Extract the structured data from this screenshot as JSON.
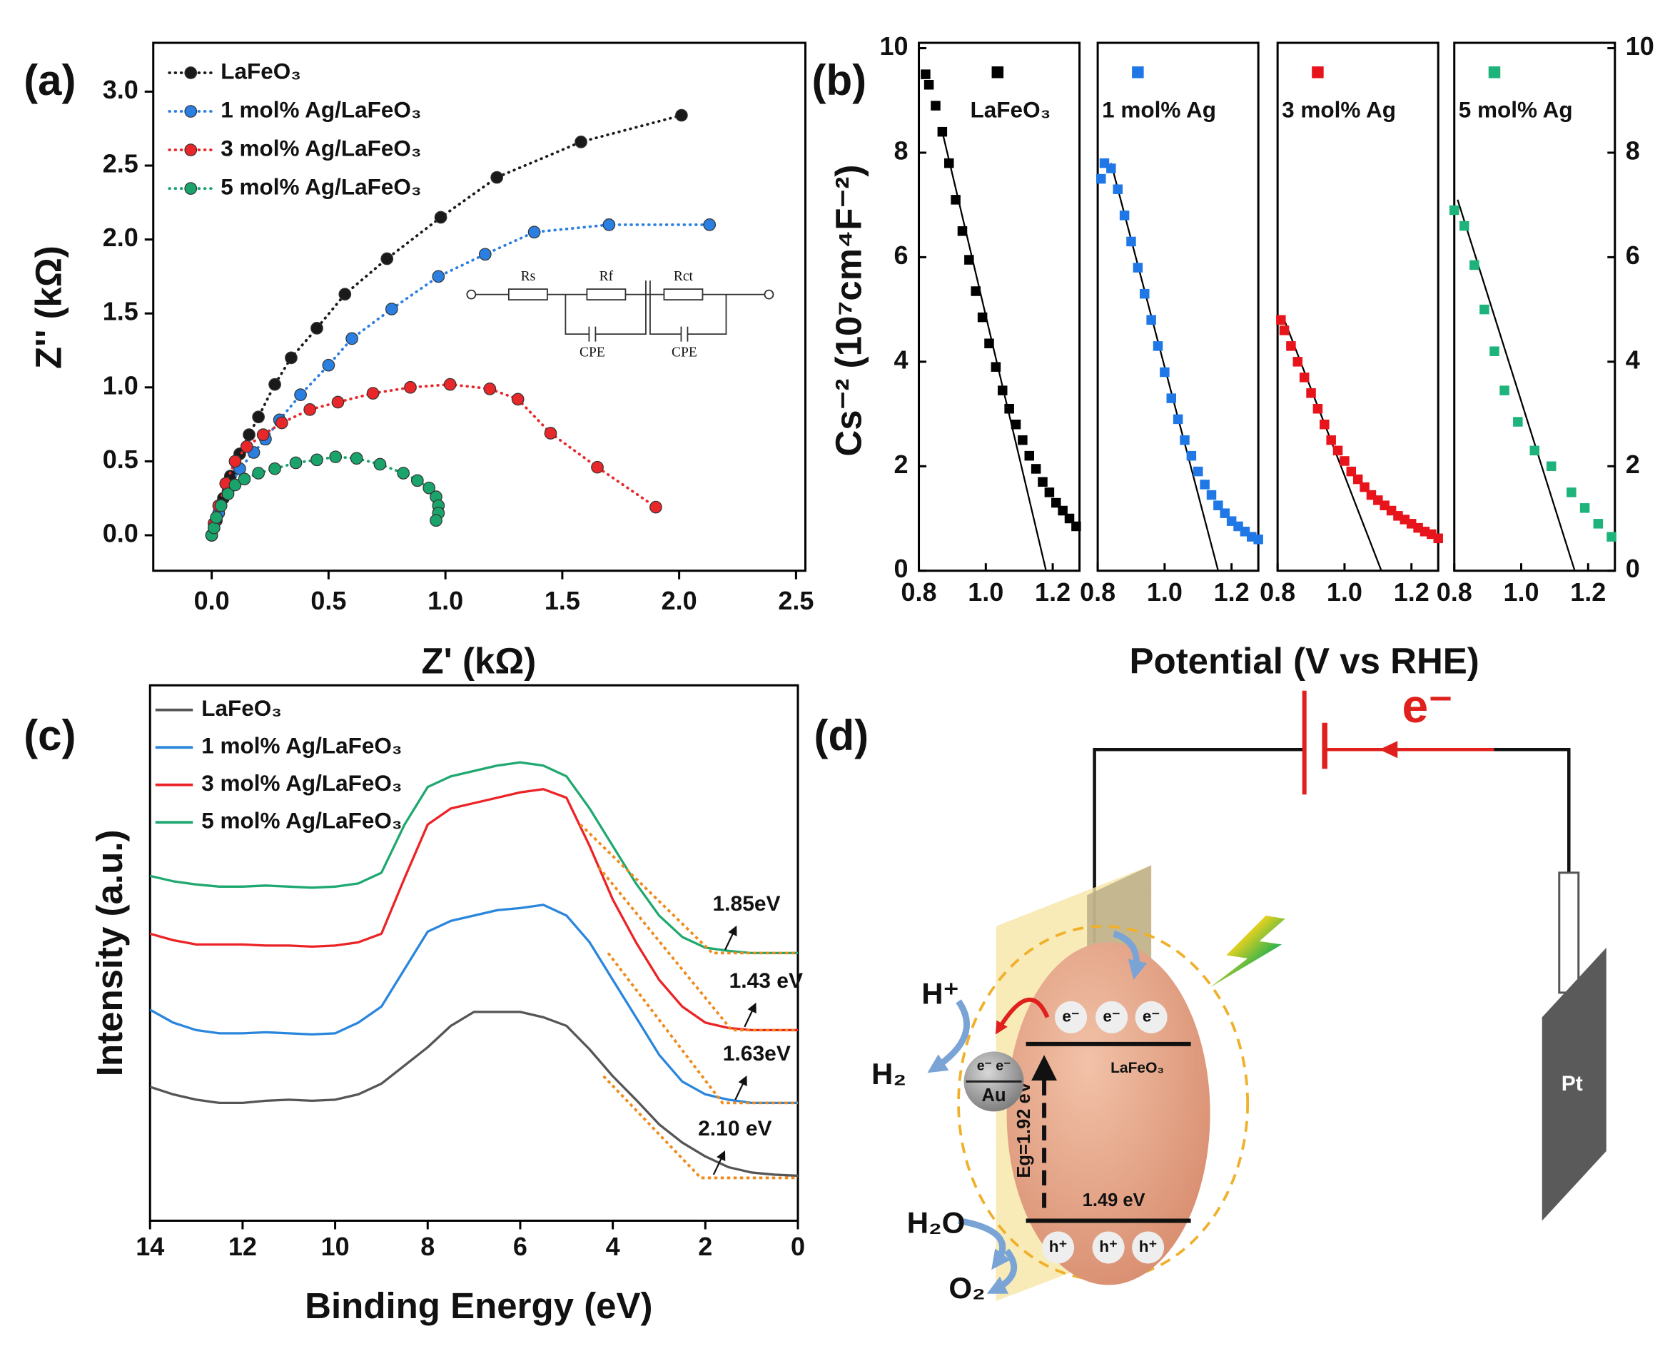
{
  "chart_data": [
    {
      "type": "scatter-line",
      "panel_label": "(a)",
      "xlabel": "Z' (kΩ)",
      "ylabel": "Z'' (kΩ)",
      "xlim": [
        -0.25,
        2.54
      ],
      "ylim": [
        -0.24,
        3.33
      ],
      "xticks": [
        {
          "value": 0,
          "label": "0.0"
        },
        0.5,
        {
          "value": 1,
          "label": "1.0"
        },
        1.5,
        {
          "value": 2,
          "label": "2.0"
        },
        2.5
      ],
      "yticks": [
        {
          "value": 0,
          "label": "0.0"
        },
        0.5,
        {
          "value": 1,
          "label": "1.0"
        },
        1.5,
        {
          "value": 2,
          "label": "2.0"
        },
        2.5,
        {
          "value": 3,
          "label": "3.0"
        }
      ],
      "inset": [
        "Rs",
        "Rf",
        "Rct",
        "CPE",
        "CPE"
      ],
      "series": [
        {
          "name": "LaFeO₃",
          "color": "#1a1a1a",
          "x": [
            0,
            0.02,
            0.05,
            0.08,
            0.12,
            0.16,
            0.2,
            0.27,
            0.34,
            0.45,
            0.57,
            0.75,
            0.98,
            1.22,
            1.58,
            2.01
          ],
          "values": [
            0,
            0.1,
            0.25,
            0.4,
            0.55,
            0.68,
            0.8,
            1.02,
            1.2,
            1.4,
            1.63,
            1.87,
            2.15,
            2.42,
            2.66,
            2.84
          ]
        },
        {
          "name": "1 mol% Ag/LaFeO₃",
          "color": "#2a7fe0",
          "x": [
            0,
            0.03,
            0.07,
            0.12,
            0.18,
            0.23,
            0.29,
            0.38,
            0.5,
            0.6,
            0.77,
            0.97,
            1.17,
            1.38,
            1.7,
            2.13
          ],
          "values": [
            0,
            0.15,
            0.3,
            0.45,
            0.56,
            0.65,
            0.78,
            0.95,
            1.15,
            1.33,
            1.53,
            1.75,
            1.9,
            2.05,
            2.1,
            2.1
          ]
        },
        {
          "name": "3 mol% Ag/LaFeO₃",
          "color": "#e8272a",
          "x": [
            0,
            0.01,
            0.03,
            0.06,
            0.1,
            0.15,
            0.22,
            0.3,
            0.42,
            0.54,
            0.69,
            0.85,
            1.02,
            1.19,
            1.31,
            1.45,
            1.65,
            1.9
          ],
          "values": [
            0,
            0.08,
            0.2,
            0.35,
            0.5,
            0.6,
            0.68,
            0.76,
            0.85,
            0.9,
            0.96,
            1.0,
            1.02,
            0.99,
            0.92,
            0.69,
            0.46,
            0.19
          ]
        },
        {
          "name": "5 mol% Ag/LaFeO₃",
          "color": "#1aa36b",
          "x": [
            0,
            0.01,
            0.02,
            0.04,
            0.07,
            0.1,
            0.14,
            0.2,
            0.27,
            0.36,
            0.45,
            0.53,
            0.62,
            0.72,
            0.82,
            0.88,
            0.93,
            0.96,
            0.97,
            0.97,
            0.96
          ],
          "values": [
            0,
            0.05,
            0.12,
            0.2,
            0.28,
            0.34,
            0.38,
            0.42,
            0.45,
            0.49,
            0.51,
            0.53,
            0.52,
            0.48,
            0.42,
            0.37,
            0.32,
            0.26,
            0.2,
            0.15,
            0.1
          ]
        }
      ]
    },
    {
      "type": "scatter-panels",
      "panel_label": "(b)",
      "ylabel": "Cs⁻² (10⁷cm⁴F⁻²)",
      "xlabel": "Potential (V vs RHE)",
      "xlim": [
        0.8,
        1.28
      ],
      "xticks": [
        0.8,
        {
          "value": 1,
          "label": "1.0"
        },
        1.2
      ],
      "ylim": [
        0,
        10
      ],
      "yticks": [
        0,
        2,
        4,
        6,
        8,
        10
      ],
      "y2lim": [
        0,
        10
      ],
      "y2ticks": [
        0,
        2,
        4,
        6,
        8,
        10
      ],
      "series": [
        {
          "name": "LaFeO₃",
          "color": "#000000",
          "x": [
            0.82,
            0.83,
            0.85,
            0.87,
            0.89,
            0.91,
            0.93,
            0.95,
            0.97,
            0.99,
            1.01,
            1.03,
            1.05,
            1.07,
            1.09,
            1.11,
            1.13,
            1.15,
            1.17,
            1.19,
            1.21,
            1.23,
            1.25,
            1.27
          ],
          "values": [
            9.5,
            9.3,
            8.9,
            8.4,
            7.8,
            7.1,
            6.5,
            5.95,
            5.35,
            4.85,
            4.35,
            3.9,
            3.45,
            3.1,
            2.8,
            2.5,
            2.2,
            1.95,
            1.7,
            1.5,
            1.3,
            1.15,
            1.0,
            0.85
          ],
          "fit_x": [
            0.87,
            1.18
          ],
          "fit_y": [
            8.4,
            0
          ]
        },
        {
          "name": "1 mol% Ag",
          "color": "#1f78e6",
          "x": [
            0.81,
            0.82,
            0.84,
            0.86,
            0.88,
            0.9,
            0.92,
            0.94,
            0.96,
            0.98,
            1.0,
            1.02,
            1.04,
            1.06,
            1.08,
            1.1,
            1.12,
            1.14,
            1.16,
            1.18,
            1.2,
            1.22,
            1.24,
            1.26,
            1.28
          ],
          "values": [
            7.5,
            7.8,
            7.7,
            7.3,
            6.8,
            6.3,
            5.8,
            5.3,
            4.8,
            4.3,
            3.8,
            3.3,
            2.9,
            2.5,
            2.2,
            1.9,
            1.65,
            1.45,
            1.25,
            1.1,
            0.95,
            0.85,
            0.75,
            0.65,
            0.6
          ],
          "fit_x": [
            0.84,
            1.16
          ],
          "fit_y": [
            7.8,
            0
          ]
        },
        {
          "name": "3 mol% Ag",
          "color": "#e8141b",
          "x": [
            0.81,
            0.82,
            0.84,
            0.86,
            0.88,
            0.9,
            0.92,
            0.94,
            0.96,
            0.98,
            1.0,
            1.02,
            1.04,
            1.06,
            1.08,
            1.1,
            1.12,
            1.14,
            1.16,
            1.18,
            1.2,
            1.22,
            1.24,
            1.26,
            1.28
          ],
          "values": [
            4.8,
            4.6,
            4.3,
            4.0,
            3.7,
            3.4,
            3.1,
            2.8,
            2.5,
            2.3,
            2.1,
            1.9,
            1.75,
            1.6,
            1.45,
            1.35,
            1.25,
            1.15,
            1.05,
            0.98,
            0.9,
            0.82,
            0.75,
            0.7,
            0.62
          ],
          "fit_x": [
            0.82,
            1.11
          ],
          "fit_y": [
            4.8,
            0
          ]
        },
        {
          "name": "5 mol% Ag",
          "color": "#1db37a",
          "x": [
            0.8,
            0.83,
            0.86,
            0.89,
            0.92,
            0.95,
            0.99,
            1.04,
            1.09,
            1.15,
            1.19,
            1.23,
            1.27
          ],
          "values": [
            6.9,
            6.6,
            5.85,
            5.0,
            4.2,
            3.45,
            2.85,
            2.3,
            2.0,
            1.5,
            1.2,
            0.9,
            0.65
          ],
          "fit_x": [
            0.81,
            1.16
          ],
          "fit_y": [
            7.1,
            0
          ]
        }
      ]
    },
    {
      "type": "line",
      "panel_label": "(c)",
      "xlabel": "Binding Energy (eV)",
      "ylabel": "Intensity (a.u.)",
      "xlim": [
        14,
        0
      ],
      "ylim": [
        0,
        100
      ],
      "xticks": [
        14,
        12,
        10,
        8,
        6,
        4,
        2,
        0
      ],
      "x": [
        14,
        13.5,
        13,
        12.5,
        12,
        11.5,
        11,
        10.5,
        10,
        9.5,
        9,
        8.5,
        8,
        7.5,
        7,
        6.5,
        6,
        5.5,
        5,
        4.5,
        4,
        3.5,
        3,
        2.5,
        2,
        1.5,
        1,
        0.5,
        0
      ],
      "series": [
        {
          "name": "LaFeO₃",
          "color": "#555555",
          "values": [
            25,
            23.6,
            22.6,
            22,
            22,
            22.4,
            22.6,
            22.4,
            22.6,
            23.6,
            25.6,
            29,
            32.4,
            36.4,
            39,
            39,
            39,
            38,
            36.4,
            32,
            27,
            22.6,
            18,
            14.6,
            12,
            10,
            9,
            8.6,
            8.4
          ],
          "tangent_x": [
            4.2,
            2.1,
            0
          ],
          "tangent_y": [
            27,
            8,
            8
          ],
          "gap_label": "2.10 eV"
        },
        {
          "name": "1 mol% Ag/LaFeO₃",
          "color": "#2a86dc",
          "values": [
            39.4,
            37,
            35.6,
            35,
            35,
            35.2,
            35,
            34.8,
            35,
            37,
            40,
            47,
            54,
            56,
            57,
            58,
            58.4,
            59,
            57,
            52,
            45,
            38,
            31,
            26,
            23.6,
            22.6,
            22,
            22,
            22
          ],
          "tangent_x": [
            4.1,
            1.63,
            0
          ],
          "tangent_y": [
            50,
            22,
            22
          ],
          "gap_label": "1.63eV"
        },
        {
          "name": "3 mol% Ag/LaFeO₃",
          "color": "#ec2326",
          "values": [
            53.6,
            52.4,
            51.6,
            51.6,
            51.6,
            51.4,
            51.4,
            51.2,
            51.4,
            52,
            53.6,
            64,
            74,
            77,
            78,
            79,
            80,
            80.6,
            79,
            70,
            60,
            52,
            45,
            40,
            37,
            36,
            35.6,
            35.6,
            35.6
          ],
          "tangent_x": [
            4.3,
            1.43,
            0
          ],
          "tangent_y": [
            66,
            35.6,
            35.6
          ],
          "gap_label": "1.43 eV"
        },
        {
          "name": "5 mol% Ag/LaFeO₃",
          "color": "#1fa870",
          "values": [
            64.4,
            63.4,
            62.8,
            62.4,
            62.4,
            62.6,
            62.4,
            62.2,
            62.4,
            63,
            65,
            74,
            81,
            83,
            84,
            85,
            85.6,
            85,
            83,
            77,
            70,
            63,
            57,
            53,
            51,
            50.4,
            50,
            50,
            50
          ],
          "tangent_x": [
            4.7,
            1.85,
            0
          ],
          "tangent_y": [
            74,
            50,
            50
          ],
          "gap_label": "1.85eV"
        }
      ]
    }
  ],
  "diagram": {
    "panel_label": "(d)",
    "current": "e⁻",
    "counter_electrode": "Pt",
    "proton": "H⁺",
    "hydrogen": "H₂",
    "au_electrons": "e⁻ e⁻",
    "metal": "Au",
    "semiconductor": "LaFeO₃",
    "band_gap": "Eg=1.92 eV",
    "vb_potential": "1.49 eV",
    "electrons": [
      "e⁻",
      "e⁻",
      "e⁻"
    ],
    "holes": [
      "h⁺",
      "h⁺",
      "h⁺"
    ],
    "water": "H₂O",
    "oxygen": "O₂"
  }
}
